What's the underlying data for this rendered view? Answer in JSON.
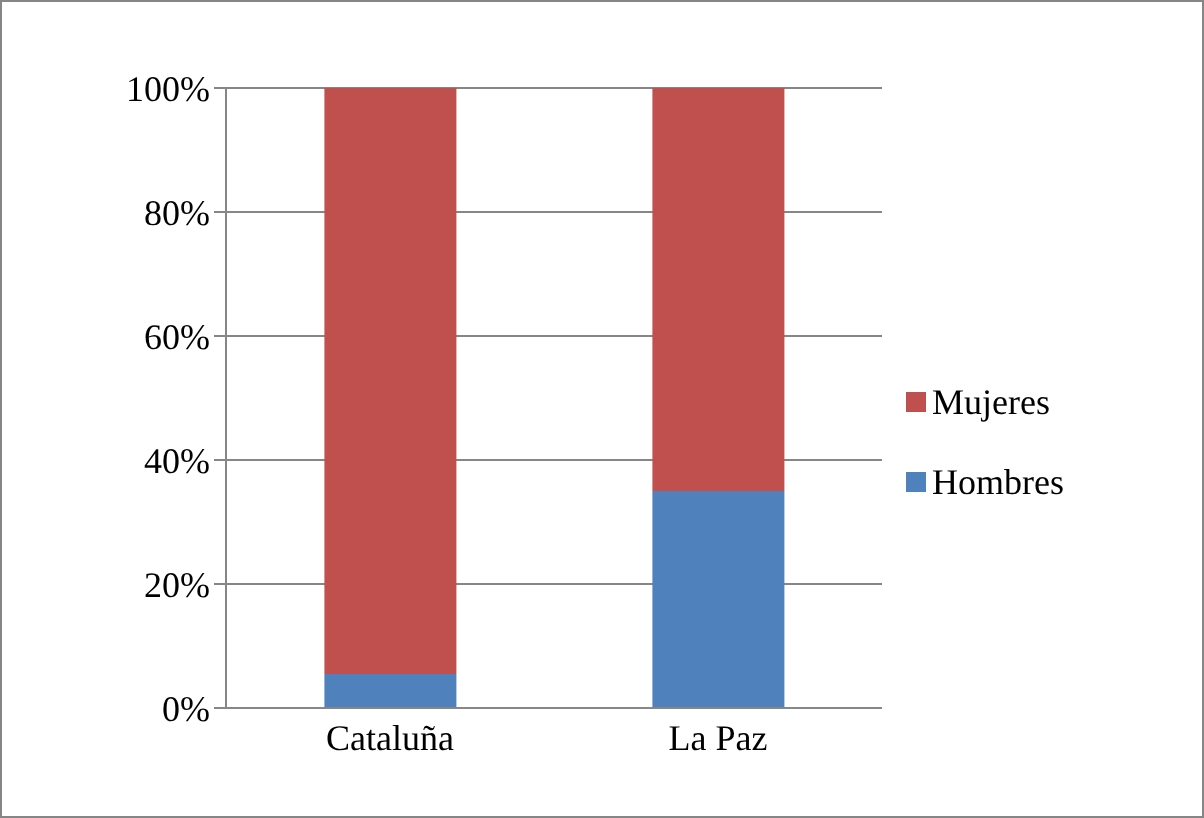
{
  "chart_data": {
    "type": "bar",
    "stacked": true,
    "categories": [
      "Cataluña",
      "La Paz"
    ],
    "series": [
      {
        "name": "Hombres",
        "color": "#4f81bd",
        "values": [
          5.5,
          35
        ]
      },
      {
        "name": "Mujeres",
        "color": "#c0504d",
        "values": [
          94.5,
          65
        ]
      }
    ],
    "ylim": [
      0,
      100
    ],
    "yticks": [
      {
        "value": 0,
        "label": "0%"
      },
      {
        "value": 20,
        "label": "20%"
      },
      {
        "value": 40,
        "label": "40%"
      },
      {
        "value": 60,
        "label": "60%"
      },
      {
        "value": 80,
        "label": "80%"
      },
      {
        "value": 100,
        "label": "100%"
      }
    ],
    "grid": "y",
    "legend": "right"
  }
}
